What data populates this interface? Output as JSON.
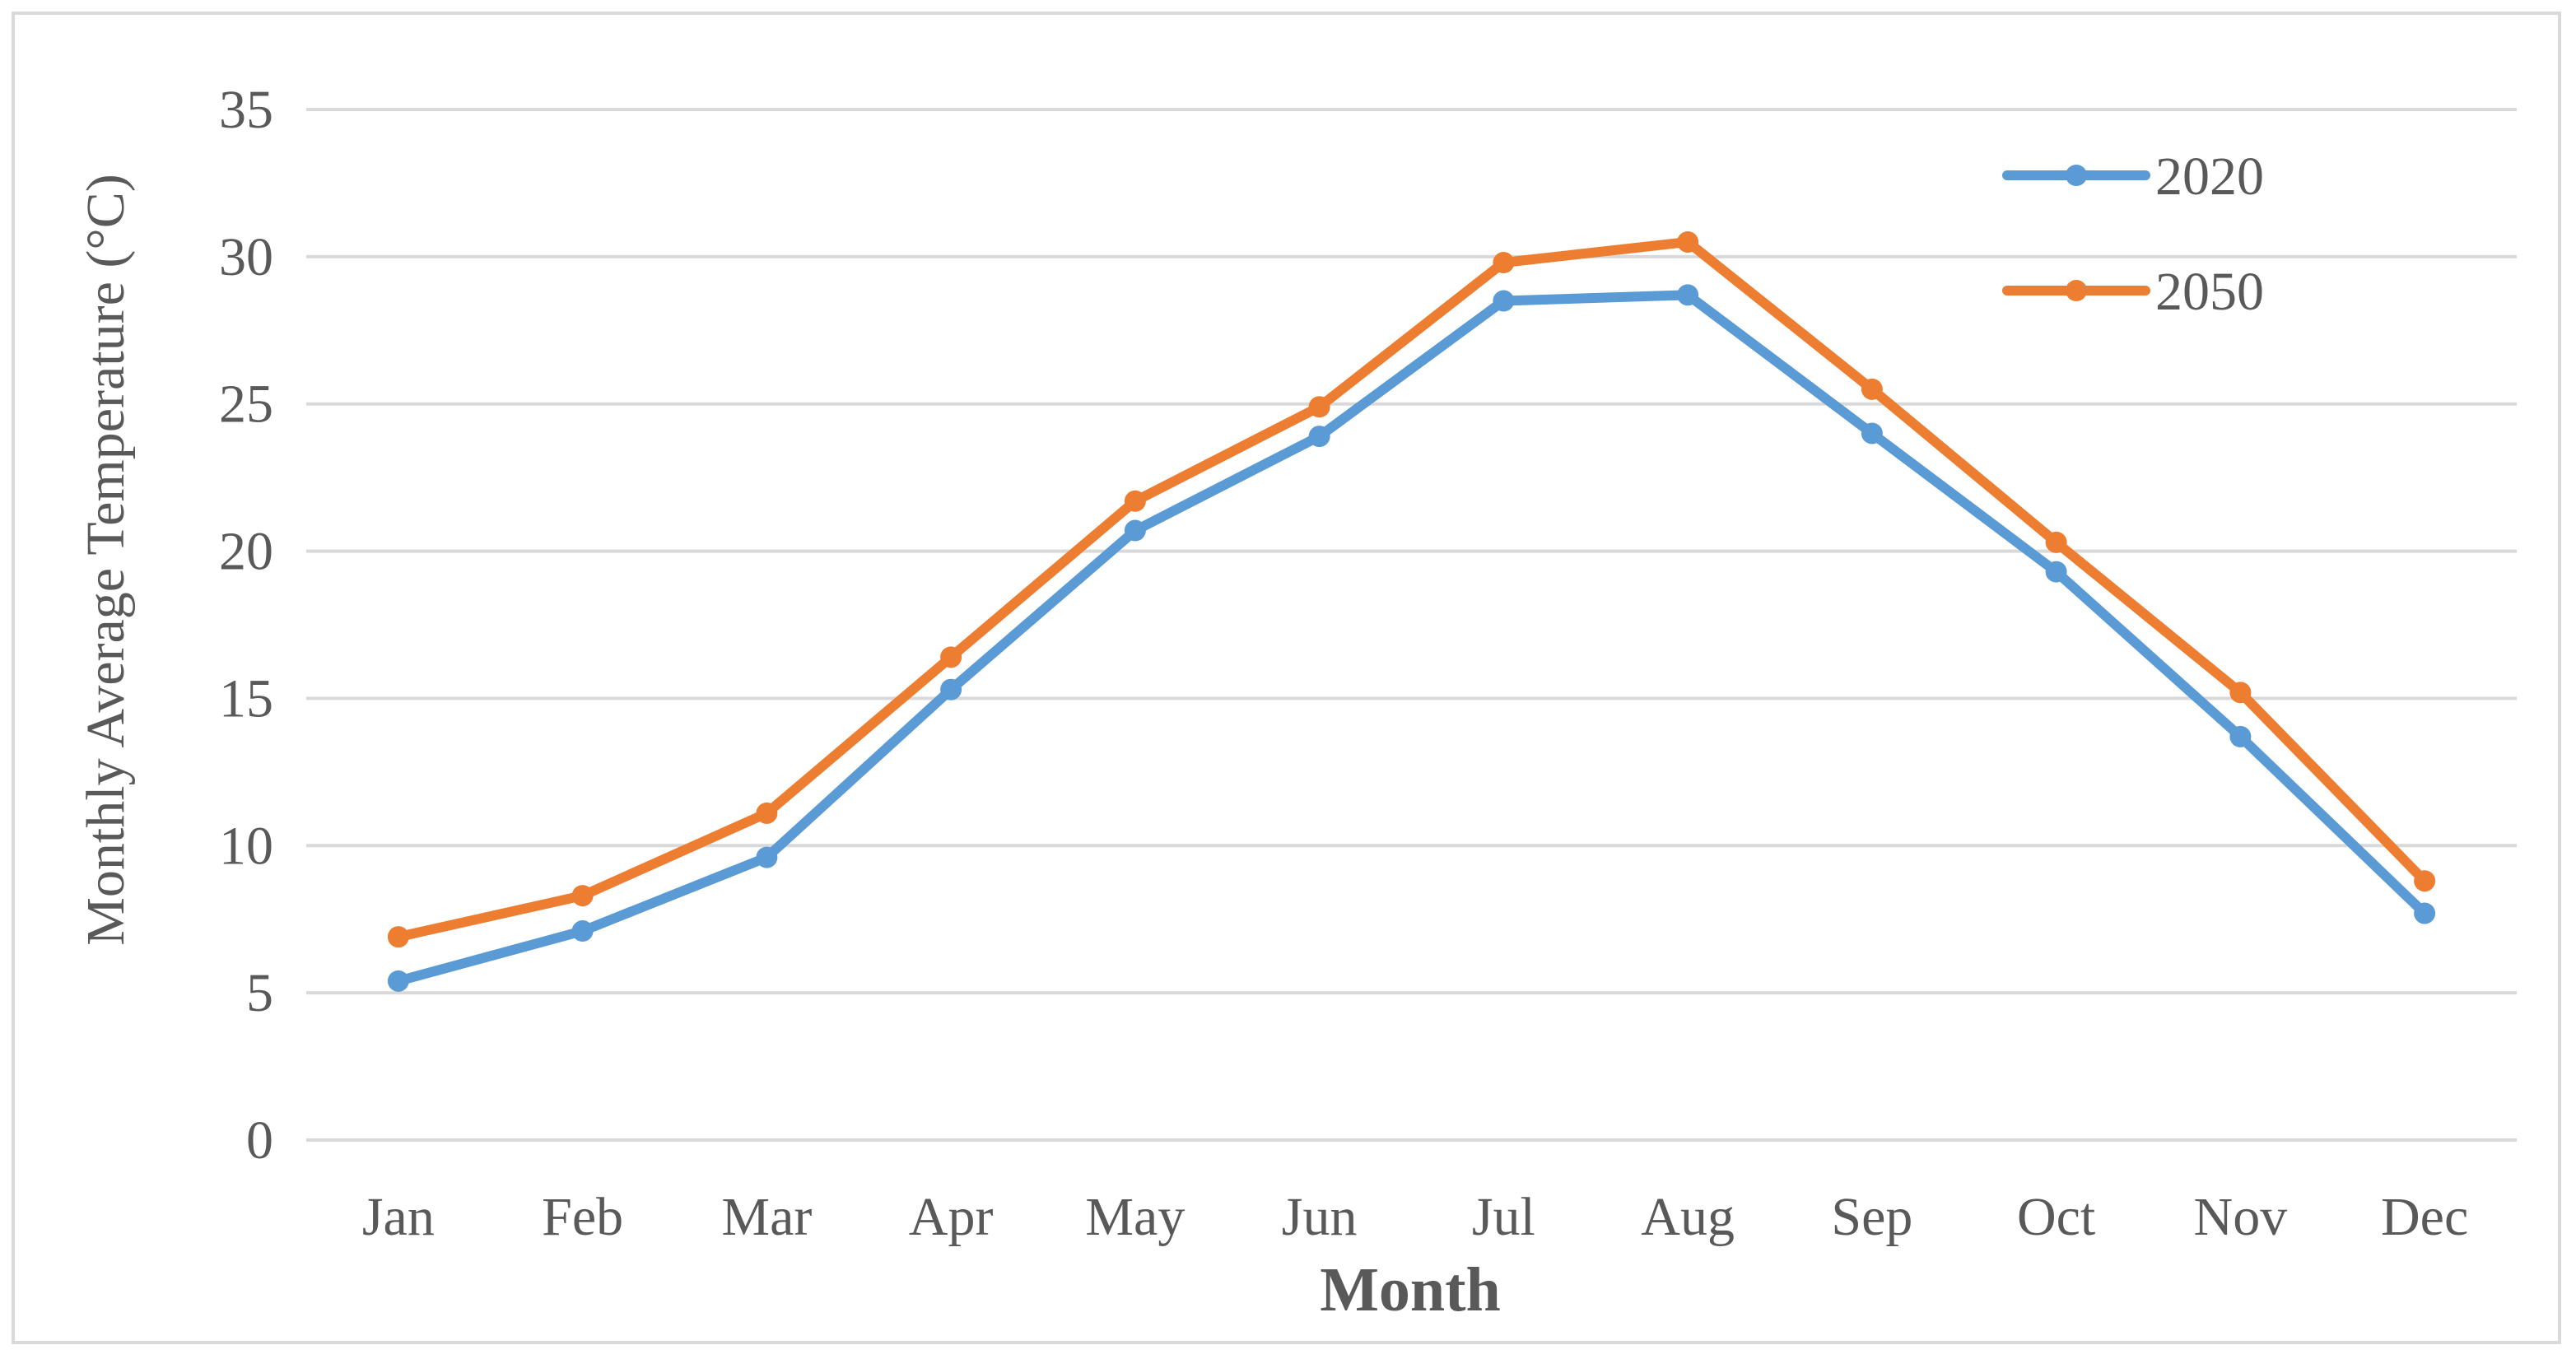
{
  "chart_data": {
    "type": "line",
    "title": "",
    "xlabel": "Month",
    "ylabel": "Monthly Average Temperature (°C)",
    "categories": [
      "Jan",
      "Feb",
      "Mar",
      "Apr",
      "May",
      "Jun",
      "Jul",
      "Aug",
      "Sep",
      "Oct",
      "Nov",
      "Dec"
    ],
    "ylim": [
      0,
      35
    ],
    "yticks": [
      0,
      5,
      10,
      15,
      20,
      25,
      30,
      35
    ],
    "grid": true,
    "legend_position": "top-right",
    "series": [
      {
        "name": "2020",
        "color": "#5b9bd5",
        "values": [
          5.4,
          7.1,
          9.6,
          15.3,
          20.7,
          23.9,
          28.5,
          28.7,
          24.0,
          19.3,
          13.7,
          7.7
        ]
      },
      {
        "name": "2050",
        "color": "#ed7d31",
        "values": [
          6.9,
          8.3,
          11.1,
          16.4,
          21.7,
          24.9,
          29.8,
          30.5,
          25.5,
          20.3,
          15.2,
          8.8
        ]
      }
    ]
  }
}
